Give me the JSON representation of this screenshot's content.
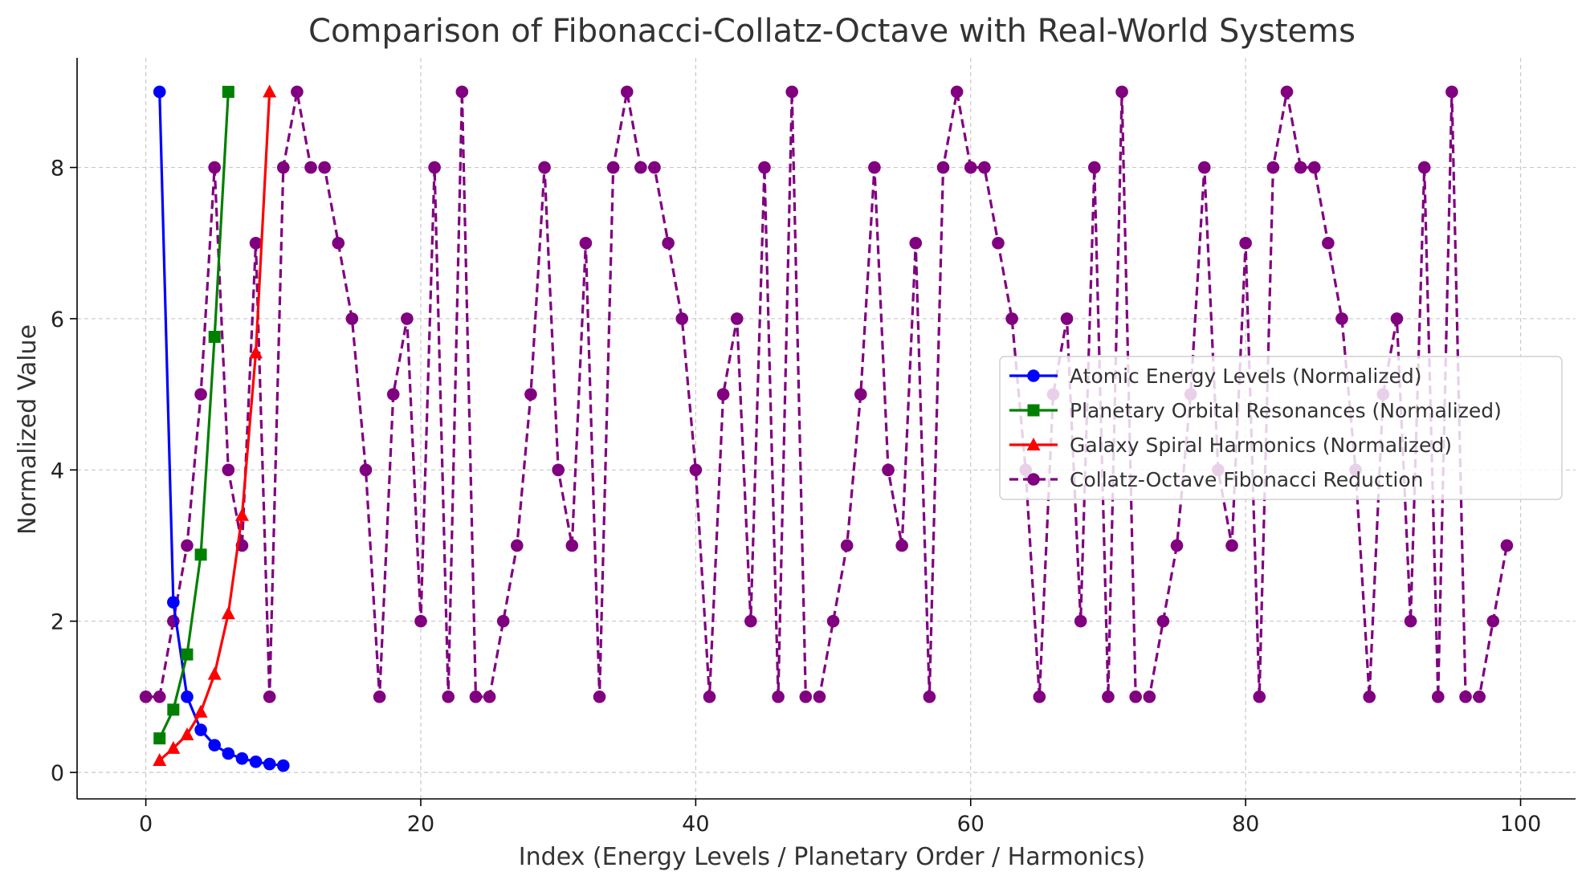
{
  "chart_data": {
    "type": "line",
    "title": "Comparison of Fibonacci-Collatz-Octave with Real-World Systems",
    "xlabel": "Index (Energy Levels / Planetary Order / Harmonics)",
    "ylabel": "Normalized Value",
    "xlim": [
      -5,
      104
    ],
    "ylim": [
      -0.35,
      9.45
    ],
    "xticks": [
      0,
      20,
      40,
      60,
      80,
      100
    ],
    "yticks": [
      0,
      2,
      4,
      6,
      8
    ],
    "grid": true,
    "legend_position": "center-right",
    "series": [
      {
        "name": "Atomic Energy Levels (Normalized)",
        "color": "#0000ff",
        "marker": "circle",
        "linestyle": "solid",
        "x": [
          1,
          2,
          3,
          4,
          5,
          6,
          7,
          8,
          9,
          10
        ],
        "y": [
          9,
          2.25,
          1,
          0.5625,
          0.36,
          0.25,
          0.1837,
          0.1406,
          0.1111,
          0.09
        ]
      },
      {
        "name": "Planetary Orbital Resonances (Normalized)",
        "color": "#008000",
        "marker": "square",
        "linestyle": "solid",
        "x": [
          1,
          2,
          3,
          4,
          5,
          6
        ],
        "y": [
          0.45,
          0.83,
          1.56,
          2.88,
          5.76,
          9
        ]
      },
      {
        "name": "Galaxy Spiral Harmonics (Normalized)",
        "color": "#ff0000",
        "marker": "triangle",
        "linestyle": "solid",
        "x": [
          1,
          2,
          3,
          4,
          5,
          6,
          7,
          8,
          9
        ],
        "y": [
          0.16,
          0.32,
          0.5,
          0.8,
          1.3,
          2.1,
          3.4,
          5.55,
          9
        ]
      },
      {
        "name": "Collatz-Octave Fibonacci Reduction",
        "color": "#800080",
        "marker": "circle",
        "linestyle": "dashed",
        "x": [
          0,
          1,
          2,
          3,
          4,
          5,
          6,
          7,
          8,
          9,
          10,
          11,
          12,
          13,
          14,
          15,
          16,
          17,
          18,
          19,
          20,
          21,
          22,
          23,
          24,
          25,
          26,
          27,
          28,
          29,
          30,
          31,
          32,
          33,
          34,
          35,
          36,
          37,
          38,
          39,
          40,
          41,
          42,
          43,
          44,
          45,
          46,
          47,
          48,
          49,
          50,
          51,
          52,
          53,
          54,
          55,
          56,
          57,
          58,
          59,
          60,
          61,
          62,
          63,
          64,
          65,
          66,
          67,
          68,
          69,
          70,
          71,
          72,
          73,
          74,
          75,
          76,
          77,
          78,
          79,
          80,
          81,
          82,
          83,
          84,
          85,
          86,
          87,
          88,
          89,
          90,
          91,
          92,
          93,
          94,
          95,
          96,
          97,
          98,
          99
        ],
        "y": [
          1,
          1,
          2,
          3,
          5,
          8,
          4,
          3,
          7,
          1,
          8,
          9,
          8,
          8,
          7,
          6,
          4,
          1,
          5,
          6,
          2,
          8,
          1,
          9,
          1,
          1,
          2,
          3,
          5,
          8,
          4,
          3,
          7,
          1,
          8,
          9,
          8,
          8,
          7,
          6,
          4,
          1,
          5,
          6,
          2,
          8,
          1,
          9,
          1,
          1,
          2,
          3,
          5,
          8,
          4,
          3,
          7,
          1,
          8,
          9,
          8,
          8,
          7,
          6,
          4,
          1,
          5,
          6,
          2,
          8,
          1,
          9,
          1,
          1,
          2,
          3,
          5,
          8,
          4,
          3,
          7,
          1,
          8,
          9,
          8,
          8,
          7,
          6,
          4,
          1,
          5,
          6,
          2,
          8,
          1,
          9,
          1,
          1,
          2,
          3
        ]
      }
    ]
  }
}
